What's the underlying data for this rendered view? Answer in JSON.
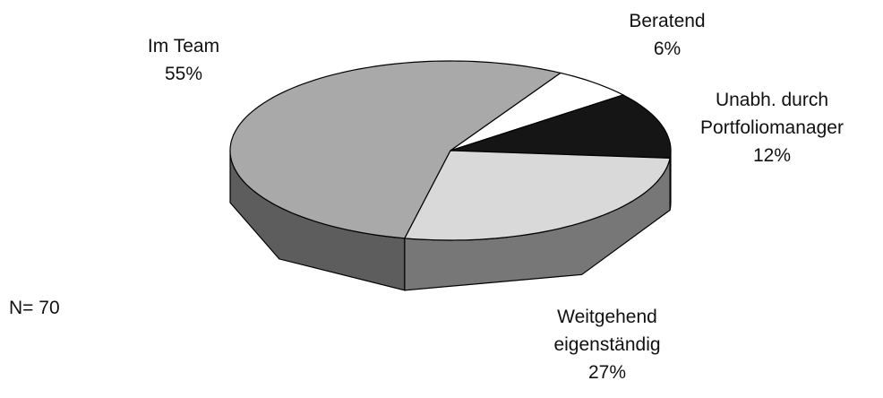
{
  "chart_data": {
    "type": "pie",
    "categories": [
      "Im Team",
      "Beratend",
      "Unabh. durch\nPortfoliomanager",
      "Weitgehend\neigenständig"
    ],
    "values": [
      55,
      6,
      12,
      27
    ],
    "value_labels": [
      "55%",
      "6%",
      "12%",
      "27%"
    ],
    "colors": [
      "#a9a9a9",
      "#ffffff",
      "#151515",
      "#d9d9d9"
    ],
    "annotation": "N= 70"
  }
}
